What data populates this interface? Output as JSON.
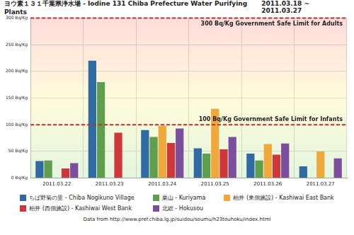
{
  "chart_data": {
    "type": "bar",
    "title": "ヨウ素１３１千葉県浄水場 - Iodine 131 Chiba Prefecture Water Purifying Plants",
    "subtitle": "2011.03.18 ~ 2011.03.27",
    "source": "Data from http://www.pref.chiba.lg.jp/suidou/soumu/h23touhoku/index.html",
    "categories": [
      "2011.03.22",
      "2011.03.23",
      "2011.03.24",
      "2011.03.25",
      "2011.03.26",
      "2011.03.27"
    ],
    "series": [
      {
        "name": "ちば野菊の里 - Chiba Nogikuno Village",
        "color": "#2f6aa3",
        "values": [
          32,
          220,
          90,
          56,
          46,
          22
        ]
      },
      {
        "name": "栗山 - Kuriyama",
        "color": "#5e9e4c",
        "values": [
          33,
          180,
          77,
          46,
          33,
          null
        ]
      },
      {
        "name": "柏井 (東側施設) - Kashiwai East Bank",
        "color": "#f0a83a",
        "values": [
          null,
          null,
          98,
          130,
          64,
          50
        ]
      },
      {
        "name": "柏井 (西側施設) - Kashiwai West Bank",
        "color": "#d0363a",
        "values": [
          18,
          85,
          66,
          54,
          44,
          null
        ]
      },
      {
        "name": "北総 - Hokusou",
        "color": "#7b4f9e",
        "values": [
          28,
          null,
          93,
          77,
          65,
          37
        ]
      }
    ],
    "ylim": [
      0,
      300
    ],
    "yticks": [
      {
        "value": 0,
        "label": "0 Bq/Kg"
      },
      {
        "value": 50,
        "label": "50 Bq/Kg"
      },
      {
        "value": 100,
        "label": "100 Bq/Kg"
      },
      {
        "value": 150,
        "label": "150 Bq/Kg"
      },
      {
        "value": 200,
        "label": "200 Bq/Kg"
      },
      {
        "value": 250,
        "label": "250 Bq/Kg"
      },
      {
        "value": 300,
        "label": "300 Bq/Kg"
      }
    ],
    "annotations": [
      {
        "value": 300,
        "label": "300 Bq/Kg Government Safe Limit for Adults"
      },
      {
        "value": 100,
        "label": "100 Bq/Kg Government Safe Limit for Infants"
      }
    ],
    "grid": true,
    "legend": "bottom"
  }
}
